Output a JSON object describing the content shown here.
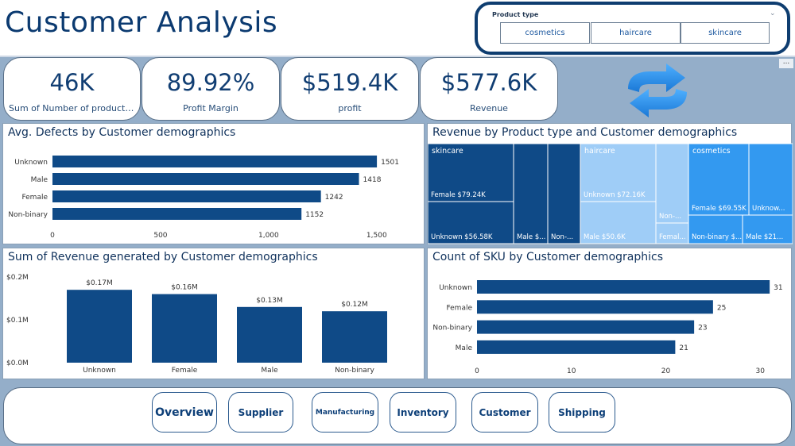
{
  "page": {
    "title": "Customer Analysis"
  },
  "slicer": {
    "label": "Product type",
    "options": [
      "cosmetics",
      "haircare",
      "skincare"
    ]
  },
  "kpis": [
    {
      "value": "46K",
      "label": "Sum of Number of products..."
    },
    {
      "value": "89.92%",
      "label": "Profit Margin"
    },
    {
      "value": "$519.4K",
      "label": "profit"
    },
    {
      "value": "$577.6K",
      "label": "Revenue"
    }
  ],
  "reset_icon": "refresh-arrows-icon",
  "more_options": "...",
  "colors": {
    "bar": "#0f4a87",
    "tm_dark": "#0f4a87",
    "tm_light": "#9fcdf7",
    "tm_bright": "#3399f0",
    "page_bg": "#94aec9"
  },
  "panels": {
    "defects": {
      "title": "Avg. Defects by Customer demographics"
    },
    "revenue_demo": {
      "title": "Sum of Revenue generated by Customer demographics"
    },
    "treemap": {
      "title": "Revenue by Product type and Customer demographics"
    },
    "sku": {
      "title": "Count of SKU by Customer demographics"
    }
  },
  "chart_data": [
    {
      "type": "bar",
      "title": "Avg. Defects by Customer demographics",
      "orientation": "horizontal",
      "categories": [
        "Unknown",
        "Male",
        "Female",
        "Non-binary"
      ],
      "values": [
        1501,
        1418,
        1242,
        1152
      ],
      "data_labels": [
        "1501",
        "1418",
        "1242",
        "1152"
      ],
      "x_ticks": [
        "0",
        "500",
        "1,000",
        "1,500"
      ],
      "xlim": [
        0,
        1600
      ]
    },
    {
      "type": "bar",
      "title": "Sum of Revenue generated by Customer demographics",
      "orientation": "vertical",
      "categories": [
        "Unknown",
        "Female",
        "Male",
        "Non-binary"
      ],
      "values": [
        0.17,
        0.16,
        0.13,
        0.12
      ],
      "data_labels": [
        "$0.17M",
        "$0.16M",
        "$0.13M",
        "$0.12M"
      ],
      "y_ticks": [
        "$0.0M",
        "$0.1M",
        "$0.2M"
      ],
      "ylim": [
        0,
        0.2
      ]
    },
    {
      "type": "treemap",
      "title": "Revenue by Product type and Customer demographics",
      "groups": [
        {
          "name": "skincare",
          "cells": [
            {
              "label": "Female $79.24K"
            },
            {
              "label": "Unknown $56.58K"
            },
            {
              "label": "Male $..."
            },
            {
              "label": "Non-..."
            }
          ]
        },
        {
          "name": "haircare",
          "cells": [
            {
              "label": "Unknown $72.16K"
            },
            {
              "label": "Male $50.6K"
            },
            {
              "label": "Non-..."
            },
            {
              "label": "Femal..."
            }
          ]
        },
        {
          "name": "cosmetics",
          "cells": [
            {
              "label": "Female $69.55K"
            },
            {
              "label": "Unknow..."
            },
            {
              "label": "Non-binary $..."
            },
            {
              "label": "Male $21..."
            }
          ]
        }
      ]
    },
    {
      "type": "bar",
      "title": "Count of SKU by Customer demographics",
      "orientation": "horizontal",
      "categories": [
        "Unknown",
        "Female",
        "Non-binary",
        "Male"
      ],
      "values": [
        31,
        25,
        23,
        21
      ],
      "data_labels": [
        "31",
        "25",
        "23",
        "21"
      ],
      "x_ticks": [
        "0",
        "10",
        "20",
        "30"
      ],
      "xlim": [
        0,
        32
      ]
    }
  ],
  "nav": {
    "items": [
      "Overview",
      "Supplier",
      "Manufacturing",
      "Inventory",
      "Customer",
      "Shipping"
    ]
  }
}
